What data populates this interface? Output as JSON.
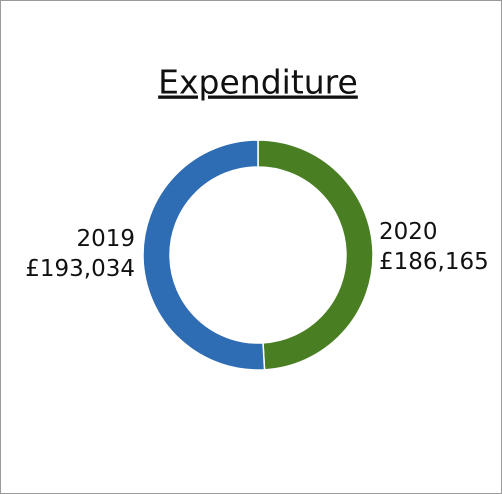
{
  "chart_data": {
    "type": "donut",
    "title": "Expenditure",
    "categories": [
      "2020",
      "2019"
    ],
    "values": [
      186165,
      193034
    ],
    "value_labels": [
      "£186,165",
      "£193,034"
    ],
    "colors": [
      "#4a7e23",
      "#2e6cb3"
    ]
  }
}
